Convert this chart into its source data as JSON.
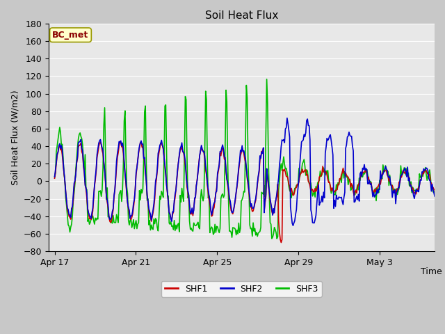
{
  "title": "Soil Heat Flux",
  "xlabel": "Time",
  "ylabel": "Soil Heat Flux (W/m2)",
  "ylim": [
    -80,
    180
  ],
  "line_colors": {
    "SHF1": "#cc0000",
    "SHF2": "#0000cc",
    "SHF3": "#00bb00"
  },
  "line_width": 1.2,
  "legend_bg": "#ffffcc",
  "legend_border": "#999900",
  "xtick_labels": [
    "Apr 17",
    "Apr 21",
    "Apr 25",
    "Apr 29",
    "May 3"
  ],
  "xtick_positions": [
    0,
    4,
    8,
    12,
    16
  ],
  "fig_bg": "#c8c8c8",
  "plot_bg": "#e8e8e8",
  "grid_color": "#ffffff",
  "label_color": "#8b0000",
  "bc_label": "BC_met"
}
